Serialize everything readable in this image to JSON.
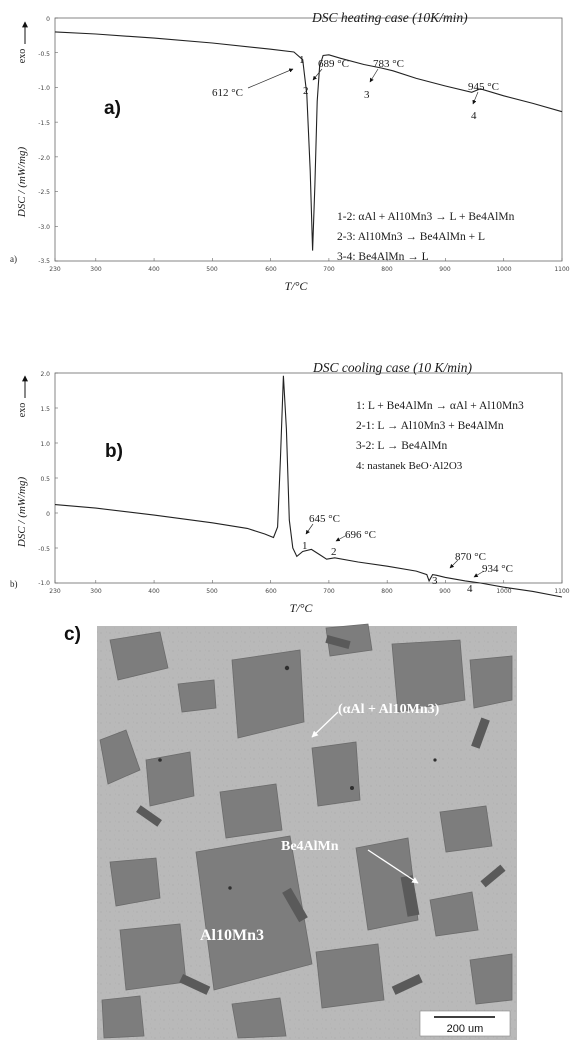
{
  "chart_data": [
    {
      "type": "line",
      "panel_label": "a)",
      "corner_label": "a)",
      "title": "DSC heating case (10K/min)",
      "xlabel": "T/°C",
      "ylabel": "DSC / (mW/mg)",
      "exo_label": "exo",
      "xlim": [
        230,
        1100
      ],
      "ylim": [
        -3.5,
        0
      ],
      "xticks": [
        "230",
        "300",
        "400",
        "500",
        "600",
        "700",
        "800",
        "900",
        "1000",
        "1100"
      ],
      "yticks": [
        "0",
        "-0.5",
        "-1.0",
        "-1.5",
        "-2.0",
        "-2.5",
        "-3.0",
        "-3.5"
      ],
      "series": [
        {
          "x": [
            230,
            300,
            400,
            500,
            600,
            640,
            655,
            662,
            668,
            672,
            676,
            680,
            684,
            690,
            700,
            720,
            760,
            790,
            810,
            850,
            900,
            945,
            960,
            1000,
            1050,
            1100
          ],
          "y": [
            -0.2,
            -0.23,
            -0.29,
            -0.36,
            -0.45,
            -0.49,
            -0.6,
            -1.1,
            -2.2,
            -3.35,
            -2.4,
            -1.2,
            -0.7,
            -0.54,
            -0.53,
            -0.58,
            -0.67,
            -0.72,
            -0.76,
            -0.87,
            -0.98,
            -1.07,
            -1.02,
            -1.12,
            -1.23,
            -1.35
          ]
        }
      ],
      "annotations": [
        {
          "text": "612 °C",
          "x": 612,
          "y": -0.7
        },
        {
          "text": "689 °C",
          "x": 700,
          "y": -0.42
        },
        {
          "text": "783 °C",
          "x": 795,
          "y": -0.42
        },
        {
          "text": "945 °C",
          "x": 945,
          "y": -0.82
        }
      ],
      "point_labels": [
        {
          "text": "1",
          "x": 652,
          "y": -0.37
        },
        {
          "text": "2",
          "x": 693,
          "y": -0.7
        },
        {
          "text": "3",
          "x": 782,
          "y": -0.83
        },
        {
          "text": "4",
          "x": 945,
          "y": -1.2
        }
      ],
      "legend": [
        "1-2: αAl + Al10Mn3 → L + Be4AlMn",
        "2-3: Al10Mn3 → Be4AlMn + L",
        "3-4: Be4AlMn → L"
      ]
    },
    {
      "type": "line",
      "panel_label": "b)",
      "corner_label": "b)",
      "title": "DSC cooling case (10 K/min)",
      "xlabel": "T/°C",
      "ylabel": "DSC / (mW/mg)",
      "exo_label": "exo",
      "xlim": [
        230,
        1100
      ],
      "ylim": [
        -1.0,
        2.0
      ],
      "xticks": [
        "230",
        "300",
        "400",
        "500",
        "600",
        "700",
        "800",
        "900",
        "1000",
        "1100"
      ],
      "yticks": [
        "2.0",
        "1.5",
        "1.0",
        "0.5",
        "0",
        "-0.5",
        "-1.0"
      ],
      "series": [
        {
          "x": [
            230,
            300,
            400,
            500,
            560,
            590,
            605,
            612,
            617,
            622,
            627,
            632,
            638,
            645,
            655,
            670,
            685,
            696,
            710,
            750,
            800,
            850,
            868,
            872,
            878,
            885,
            900,
            934,
            960,
            1000,
            1050,
            1100
          ],
          "y": [
            0.12,
            0.07,
            -0.03,
            -0.14,
            -0.22,
            -0.3,
            -0.35,
            -0.2,
            0.8,
            1.96,
            1.2,
            -0.1,
            -0.5,
            -0.62,
            -0.55,
            -0.52,
            -0.6,
            -0.66,
            -0.64,
            -0.7,
            -0.76,
            -0.83,
            -0.88,
            -0.97,
            -0.88,
            -0.89,
            -0.92,
            -0.97,
            -1.0,
            -1.06,
            -1.12,
            -1.2
          ]
        }
      ],
      "annotations": [
        {
          "text": "645 °C",
          "x": 650,
          "y": -0.42
        },
        {
          "text": "696 °C",
          "x": 712,
          "y": -0.6
        },
        {
          "text": "870 °C",
          "x": 895,
          "y": -0.82
        },
        {
          "text": "934 °C",
          "x": 960,
          "y": -0.95
        }
      ],
      "point_labels": [
        {
          "text": "1",
          "x": 645,
          "y": -0.8
        },
        {
          "text": "2",
          "x": 688,
          "y": -0.82
        },
        {
          "text": "3",
          "x": 868,
          "y": -1.08
        },
        {
          "text": "4",
          "x": 928,
          "y": -1.14
        }
      ],
      "legend": [
        "1: L + Be4AlMn → αAl + Al10Mn3",
        "2-1: L → Al10Mn3 + Be4AlMn",
        "3-2: L → Be4AlMn",
        "4: nastanek BeO·Al2O3"
      ]
    }
  ],
  "micrograph": {
    "panel_label": "c)",
    "labels": {
      "eutectic": "(αAl + Al10Mn3)",
      "be4": "Be4AlMn",
      "al10": "Al10Mn3"
    },
    "scale_bar": "200 um"
  }
}
